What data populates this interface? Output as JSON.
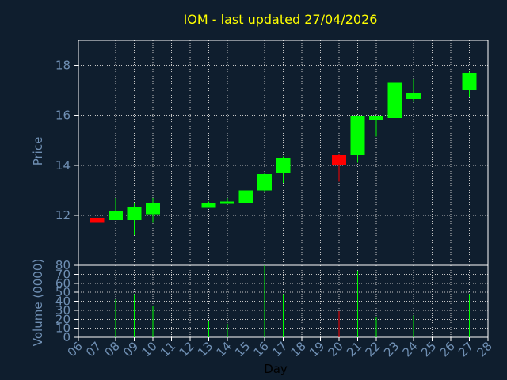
{
  "colors": {
    "background": "#0f1e2e",
    "axis": "#ffffff",
    "grid": "#c8c8c8",
    "title": "#ffff00",
    "label": "#6f8fb3",
    "up": "#00ff00",
    "down": "#ff0000"
  },
  "chart_data": [
    {
      "type": "candlestick",
      "title": "IOM - last updated 27/04/2026",
      "ylabel": "Price",
      "ylim": [
        10.0,
        19.0
      ],
      "yticks": [
        12,
        14,
        16,
        18
      ],
      "xlim": [
        6,
        28
      ],
      "grid": true,
      "candles": [
        {
          "day": 7,
          "open": 11.9,
          "high": 11.95,
          "low": 11.3,
          "close": 11.7
        },
        {
          "day": 8,
          "open": 11.8,
          "high": 12.7,
          "low": 11.8,
          "close": 12.15
        },
        {
          "day": 9,
          "open": 11.8,
          "high": 12.5,
          "low": 11.2,
          "close": 12.35
        },
        {
          "day": 10,
          "open": 12.05,
          "high": 12.7,
          "low": 11.7,
          "close": 12.5
        },
        {
          "day": 13,
          "open": 12.3,
          "high": 12.55,
          "low": 12.3,
          "close": 12.5
        },
        {
          "day": 14,
          "open": 12.45,
          "high": 12.7,
          "low": 12.45,
          "close": 12.55
        },
        {
          "day": 15,
          "open": 12.5,
          "high": 13.05,
          "low": 12.4,
          "close": 13.0
        },
        {
          "day": 16,
          "open": 13.0,
          "high": 13.7,
          "low": 12.95,
          "close": 13.65
        },
        {
          "day": 17,
          "open": 13.7,
          "high": 14.35,
          "low": 13.3,
          "close": 14.3
        },
        {
          "day": 20,
          "open": 14.4,
          "high": 14.45,
          "low": 13.35,
          "close": 14.0
        },
        {
          "day": 21,
          "open": 14.4,
          "high": 16.0,
          "low": 14.1,
          "close": 15.95
        },
        {
          "day": 22,
          "open": 15.8,
          "high": 15.95,
          "low": 15.15,
          "close": 15.95
        },
        {
          "day": 23,
          "open": 15.9,
          "high": 17.3,
          "low": 15.45,
          "close": 17.3
        },
        {
          "day": 24,
          "open": 16.65,
          "high": 17.45,
          "low": 16.55,
          "close": 16.9
        },
        {
          "day": 27,
          "open": 17.0,
          "high": 17.75,
          "low": 16.75,
          "close": 17.7
        }
      ]
    },
    {
      "type": "bar",
      "ylabel": "Volume (0000)",
      "xlabel": "Day",
      "ylim": [
        0,
        80
      ],
      "yticks": [
        0,
        10,
        20,
        30,
        40,
        50,
        60,
        70,
        80
      ],
      "xticks": [
        "06",
        "07",
        "08",
        "09",
        "10",
        "11",
        "12",
        "13",
        "14",
        "15",
        "16",
        "17",
        "18",
        "19",
        "20",
        "21",
        "22",
        "23",
        "24",
        "25",
        "26",
        "27",
        "28"
      ],
      "grid": true,
      "bars": [
        {
          "day": 7,
          "volume": 17,
          "direction": "down"
        },
        {
          "day": 8,
          "volume": 42,
          "direction": "up"
        },
        {
          "day": 9,
          "volume": 48,
          "direction": "up"
        },
        {
          "day": 10,
          "volume": 35,
          "direction": "up"
        },
        {
          "day": 13,
          "volume": 18,
          "direction": "up"
        },
        {
          "day": 14,
          "volume": 15,
          "direction": "up"
        },
        {
          "day": 15,
          "volume": 52,
          "direction": "up"
        },
        {
          "day": 16,
          "volume": 80,
          "direction": "up"
        },
        {
          "day": 17,
          "volume": 48,
          "direction": "up"
        },
        {
          "day": 20,
          "volume": 29,
          "direction": "down"
        },
        {
          "day": 21,
          "volume": 74,
          "direction": "up"
        },
        {
          "day": 22,
          "volume": 22,
          "direction": "up"
        },
        {
          "day": 23,
          "volume": 70,
          "direction": "up"
        },
        {
          "day": 24,
          "volume": 24,
          "direction": "up"
        },
        {
          "day": 27,
          "volume": 48,
          "direction": "up"
        }
      ]
    }
  ]
}
